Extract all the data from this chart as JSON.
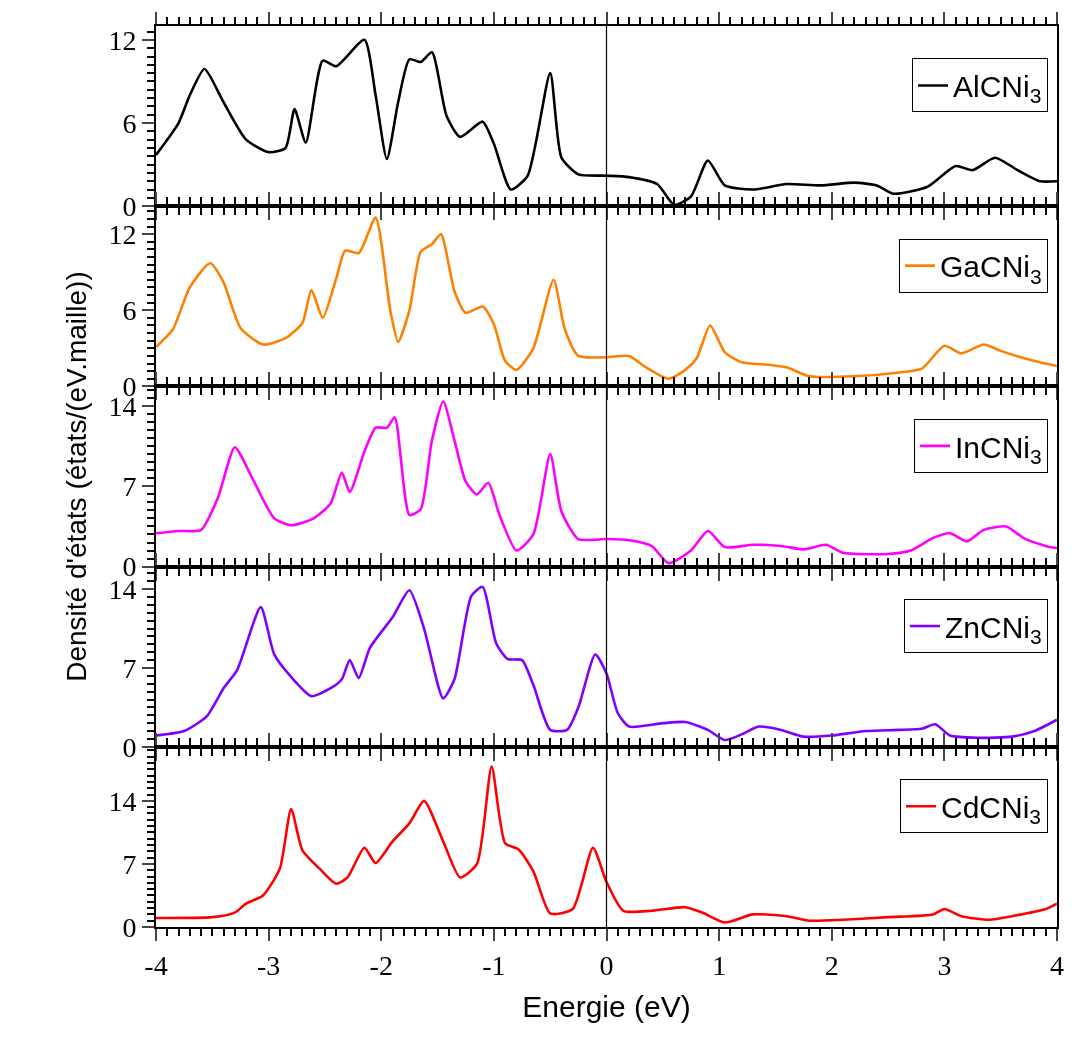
{
  "chart_data": [
    {
      "type": "line",
      "xlim": [
        -4,
        4
      ],
      "xticks": [
        -4,
        -3,
        -2,
        -1,
        0,
        1,
        2,
        3,
        4
      ],
      "ylim": [
        0,
        13
      ],
      "yticks": [
        0,
        6,
        12
      ],
      "tick_labels": "y",
      "legend": "top right",
      "grid": false,
      "marker": "none",
      "line_style": "solid",
      "ref_lines": [
        {
          "axis": "x",
          "value": 0,
          "color": "#000000"
        }
      ],
      "series": [
        {
          "name": "AlCNi$_{3}$",
          "color": "#000000",
          "x": [
            -4,
            -3.8,
            -3.7,
            -3.57,
            -3.4,
            -3.2,
            -3.0,
            -2.85,
            -2.77,
            -2.67,
            -2.52,
            -2.4,
            -2.15,
            -2.05,
            -1.95,
            -1.85,
            -1.75,
            -1.65,
            -1.55,
            -1.42,
            -1.3,
            -1.1,
            -1.0,
            -0.85,
            -0.7,
            -0.5,
            -0.4,
            -0.25,
            0,
            0.2,
            0.45,
            0.6,
            0.75,
            0.9,
            1.05,
            1.3,
            1.6,
            1.9,
            2.2,
            2.4,
            2.55,
            2.85,
            3.1,
            3.25,
            3.45,
            3.65,
            3.85,
            4.0
          ],
          "values": [
            3.7,
            6,
            8,
            9.9,
            7.5,
            4.8,
            3.9,
            4.2,
            7.0,
            4.6,
            10.5,
            10.1,
            12.0,
            8,
            3.4,
            7.5,
            10.6,
            10.4,
            11.1,
            6.5,
            5.0,
            6.1,
            4.5,
            1.2,
            2.2,
            9.6,
            3.5,
            2.3,
            2.2,
            2.1,
            1.6,
            0.1,
            0.7,
            3.3,
            1.5,
            1.2,
            1.6,
            1.5,
            1.7,
            1.5,
            0.9,
            1.4,
            2.9,
            2.6,
            3.5,
            2.6,
            1.8,
            1.8
          ]
        }
      ]
    },
    {
      "type": "line",
      "xlim": [
        -4,
        4
      ],
      "xticks": [
        -4,
        -3,
        -2,
        -1,
        0,
        1,
        2,
        3,
        4
      ],
      "ylim": [
        0,
        14.2
      ],
      "yticks": [
        0,
        6,
        12
      ],
      "tick_labels": "y",
      "legend": "top right",
      "grid": false,
      "marker": "none",
      "line_style": "solid",
      "ref_lines": [
        {
          "axis": "x",
          "value": 0,
          "color": "#000000"
        }
      ],
      "series": [
        {
          "name": "GaCNi$_{3}$",
          "color": "#ff8000",
          "x": [
            -4,
            -3.85,
            -3.7,
            -3.52,
            -3.4,
            -3.25,
            -3.05,
            -2.85,
            -2.7,
            -2.62,
            -2.52,
            -2.4,
            -2.32,
            -2.2,
            -2.05,
            -1.92,
            -1.85,
            -1.75,
            -1.65,
            -1.55,
            -1.47,
            -1.35,
            -1.25,
            -1.1,
            -1.0,
            -0.9,
            -0.8,
            -0.65,
            -0.47,
            -0.37,
            -0.25,
            0,
            0.2,
            0.35,
            0.55,
            0.7,
            0.8,
            0.92,
            1.05,
            1.2,
            1.45,
            1.6,
            1.8,
            2.2,
            2.6,
            2.8,
            3.0,
            3.15,
            3.35,
            3.5,
            3.8,
            4.0
          ],
          "values": [
            3.1,
            4.5,
            7.8,
            9.7,
            8.2,
            4.6,
            3.3,
            3.8,
            5.0,
            7.6,
            5.4,
            8.5,
            10.7,
            10.5,
            13.3,
            6,
            3.5,
            6,
            10.6,
            11.2,
            12.0,
            7.5,
            5.8,
            6.3,
            4.9,
            2.0,
            1.3,
            3,
            8.4,
            4.5,
            2.4,
            2.3,
            2.4,
            1.5,
            0.6,
            1.3,
            2.2,
            4.8,
            2.7,
            1.9,
            1.7,
            1.5,
            0.8,
            0.8,
            1.1,
            1.4,
            3.2,
            2.6,
            3.3,
            2.8,
            2.0,
            1.6
          ]
        }
      ]
    },
    {
      "type": "line",
      "xlim": [
        -4,
        4
      ],
      "xticks": [
        -4,
        -3,
        -2,
        -1,
        0,
        1,
        2,
        3,
        4
      ],
      "ylim": [
        0,
        15.7
      ],
      "yticks": [
        0,
        7,
        14
      ],
      "ylabel": "Densité d'états (états/(eV.maille))",
      "tick_labels": "y",
      "legend": "top right",
      "grid": false,
      "marker": "none",
      "line_style": "solid",
      "ref_lines": [
        {
          "axis": "x",
          "value": 0,
          "color": "#000000"
        }
      ],
      "series": [
        {
          "name": "InCNi$_{3}$",
          "color": "#ff00ff",
          "x": [
            -4,
            -3.8,
            -3.6,
            -3.45,
            -3.3,
            -3.15,
            -2.95,
            -2.8,
            -2.6,
            -2.45,
            -2.35,
            -2.28,
            -2.15,
            -2.05,
            -1.95,
            -1.88,
            -1.75,
            -1.65,
            -1.55,
            -1.45,
            -1.35,
            -1.25,
            -1.15,
            -1.05,
            -0.95,
            -0.8,
            -0.65,
            -0.5,
            -0.4,
            -0.25,
            0,
            0.2,
            0.4,
            0.55,
            0.75,
            0.9,
            1.05,
            1.3,
            1.55,
            1.75,
            1.95,
            2.1,
            2.5,
            2.7,
            2.9,
            3.05,
            3.2,
            3.35,
            3.55,
            3.7,
            3.9,
            4.0
          ],
          "values": [
            2.9,
            3.1,
            3.2,
            6,
            10.4,
            7.8,
            4.2,
            3.6,
            4.2,
            5.5,
            8.2,
            6.5,
            10,
            12.1,
            12.1,
            13,
            4.5,
            5,
            11,
            14.4,
            11,
            7.4,
            6.3,
            7.3,
            4.5,
            1.4,
            2.8,
            9.8,
            4.8,
            2.4,
            2.4,
            2.3,
            1.8,
            0.3,
            1.4,
            3.1,
            1.7,
            1.9,
            1.8,
            1.5,
            1.9,
            1.2,
            1.1,
            1.4,
            2.5,
            2.9,
            2.2,
            3.2,
            3.5,
            2.5,
            1.8,
            1.6
          ]
        }
      ]
    },
    {
      "type": "line",
      "xlim": [
        -4,
        4
      ],
      "xticks": [
        -4,
        -3,
        -2,
        -1,
        0,
        1,
        2,
        3,
        4
      ],
      "ylim": [
        0,
        16
      ],
      "yticks": [
        0,
        7,
        14
      ],
      "tick_labels": "y",
      "legend": "top right",
      "grid": false,
      "marker": "none",
      "line_style": "solid",
      "ref_lines": [
        {
          "axis": "x",
          "value": 0,
          "color": "#000000"
        }
      ],
      "series": [
        {
          "name": "ZnCNi$_{3}$",
          "color": "#8000ff",
          "x": [
            -4,
            -3.75,
            -3.55,
            -3.4,
            -3.28,
            -3.07,
            -2.95,
            -2.8,
            -2.62,
            -2.45,
            -2.35,
            -2.28,
            -2.2,
            -2.1,
            -1.9,
            -1.75,
            -1.62,
            -1.45,
            -1.35,
            -1.2,
            -1.1,
            -0.98,
            -0.88,
            -0.75,
            -0.65,
            -0.5,
            -0.35,
            -0.25,
            -0.1,
            0.0,
            0.1,
            0.2,
            0.5,
            0.7,
            0.9,
            1.05,
            1.2,
            1.35,
            1.55,
            1.75,
            2.0,
            2.3,
            2.6,
            2.8,
            2.92,
            3.05,
            3.3,
            3.6,
            3.8,
            4.0
          ],
          "values": [
            1.0,
            1.4,
            2.7,
            5.2,
            6.8,
            12.4,
            8.2,
            6.2,
            4.5,
            5.2,
            6.0,
            7.7,
            6.1,
            8.8,
            11.5,
            13.9,
            10.5,
            4.3,
            6,
            13.4,
            14.2,
            9.2,
            7.8,
            7.7,
            5.5,
            1.5,
            1.5,
            3.5,
            8.2,
            6.5,
            3.0,
            1.8,
            2.1,
            2.2,
            1.5,
            0.6,
            1.1,
            1.8,
            1.5,
            0.9,
            1.0,
            1.4,
            1.5,
            1.6,
            2.0,
            1.0,
            0.8,
            0.9,
            1.4,
            2.4
          ]
        }
      ]
    },
    {
      "type": "line",
      "xlim": [
        -4,
        4
      ],
      "xticks": [
        -4,
        -3,
        -2,
        -1,
        0,
        1,
        2,
        3,
        4
      ],
      "ylim": [
        0,
        20
      ],
      "yticks": [
        0,
        7,
        14
      ],
      "xlabel": "Energie (eV)",
      "legend": "top right",
      "grid": false,
      "marker": "none",
      "line_style": "solid",
      "ref_lines": [
        {
          "axis": "x",
          "value": 0,
          "color": "#000000"
        }
      ],
      "series": [
        {
          "name": "CdCNi$_{3}$",
          "color": "#ff0000",
          "x": [
            -4,
            -3.5,
            -3.3,
            -3.2,
            -3.05,
            -2.9,
            -2.8,
            -2.7,
            -2.55,
            -2.4,
            -2.3,
            -2.15,
            -2.05,
            -1.9,
            -1.75,
            -1.62,
            -1.45,
            -1.3,
            -1.15,
            -1.02,
            -0.9,
            -0.78,
            -0.65,
            -0.5,
            -0.3,
            -0.12,
            0.0,
            0.15,
            0.4,
            0.7,
            0.85,
            1.05,
            1.3,
            1.6,
            1.8,
            2.1,
            2.5,
            2.9,
            3.0,
            3.15,
            3.4,
            3.6,
            3.9,
            4.0
          ],
          "values": [
            1.0,
            1.1,
            1.6,
            2.6,
            3.5,
            6.5,
            13.1,
            8.5,
            6.5,
            4.8,
            5.5,
            8.8,
            7.1,
            9.5,
            11.5,
            14.0,
            9.5,
            5.5,
            7,
            17.8,
            9.3,
            8.6,
            6.2,
            1.5,
            2.0,
            8.8,
            5,
            1.8,
            1.8,
            2.2,
            1.6,
            0.5,
            1.4,
            1.2,
            0.7,
            0.8,
            1.1,
            1.4,
            2.0,
            1.2,
            0.8,
            1.2,
            2.0,
            2.6
          ]
        }
      ]
    }
  ]
}
